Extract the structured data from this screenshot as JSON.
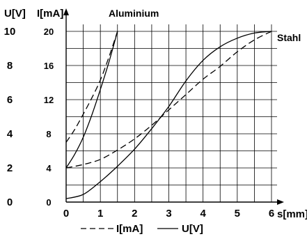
{
  "chart_data": {
    "type": "line",
    "title": "",
    "xlabel": "s[mm]",
    "ylabel_left": "U[V]",
    "ylabel_right": "I[mA]",
    "xlim": [
      0,
      6
    ],
    "ylim_u": [
      0,
      10
    ],
    "ylim_i": [
      0,
      20
    ],
    "x_ticks": [
      "0",
      "1",
      "2",
      "3",
      "4",
      "5",
      "6"
    ],
    "u_ticks": [
      "0",
      "2",
      "4",
      "6",
      "8",
      "10"
    ],
    "i_ticks": [
      "0",
      "4",
      "8",
      "12",
      "16",
      "20"
    ],
    "grid": true,
    "grid_step_x": 0.5,
    "grid_step_u": 1,
    "legend_position": "bottom",
    "annotations": [
      {
        "text": "Aluminium",
        "x": 1.2,
        "u": 10.4
      },
      {
        "text": "Stahl",
        "x": 6.1,
        "u": 9.8
      }
    ],
    "series": [
      {
        "name": "I[mA]",
        "material": "Aluminium",
        "axis": "I",
        "style": "dashed",
        "x": [
          0,
          0.25,
          0.5,
          0.75,
          1.0,
          1.25,
          1.5
        ],
        "y": [
          7,
          8.5,
          10.3,
          12.2,
          14.3,
          17,
          20
        ]
      },
      {
        "name": "U[V]",
        "material": "Aluminium",
        "axis": "U",
        "style": "solid",
        "x": [
          0,
          0.25,
          0.5,
          0.75,
          1.0,
          1.25,
          1.5
        ],
        "y": [
          2,
          2.8,
          3.8,
          5.1,
          6.6,
          8.2,
          10
        ]
      },
      {
        "name": "I[mA]",
        "material": "Stahl",
        "axis": "I",
        "style": "dashed",
        "x": [
          0,
          0.5,
          1,
          1.5,
          2,
          2.5,
          3,
          3.5,
          4,
          4.5,
          5,
          5.5,
          6
        ],
        "y": [
          4,
          4.4,
          5,
          6.1,
          7.4,
          9,
          10.8,
          12.6,
          14.4,
          15.9,
          17.6,
          19,
          20
        ]
      },
      {
        "name": "U[V]",
        "material": "Stahl",
        "axis": "U",
        "style": "solid",
        "x": [
          0,
          0.5,
          1,
          1.5,
          2,
          2.5,
          3,
          3.5,
          4,
          4.5,
          5,
          5.5,
          6
        ],
        "y": [
          0.2,
          0.45,
          1.2,
          2.1,
          3.1,
          4.3,
          5.6,
          7.1,
          8.3,
          9.1,
          9.6,
          9.9,
          10
        ]
      }
    ]
  },
  "legend": {
    "dashed_label": "I[mA]",
    "solid_label": "U[V]"
  }
}
